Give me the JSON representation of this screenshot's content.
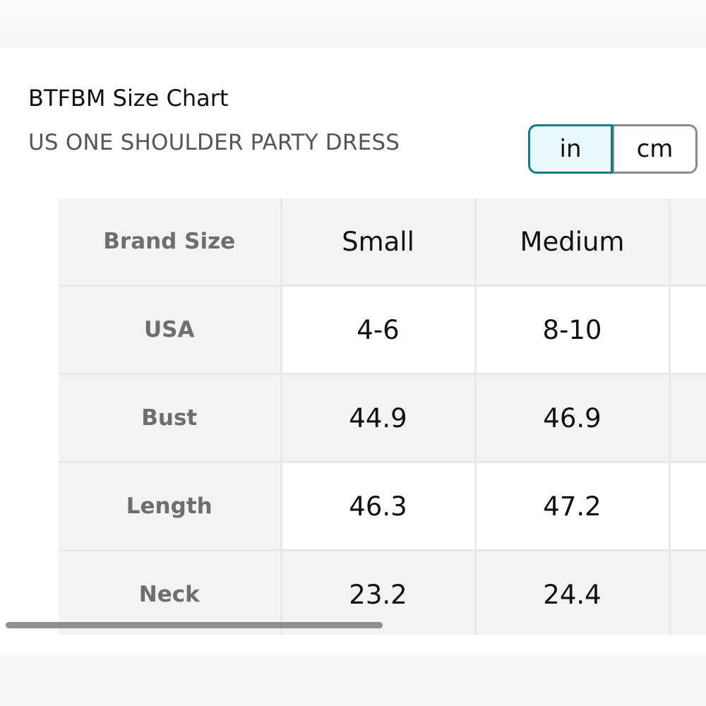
{
  "title": "BTFBM Size Chart",
  "subtitle": "US ONE SHOULDER PARTY DRESS",
  "unit_toggle": {
    "selected": "in",
    "in_label": "in",
    "cm_label": "cm",
    "accent_color": "#0e7a86"
  },
  "size_table": {
    "header": [
      "Brand Size",
      "Small",
      "Medium",
      ""
    ],
    "rows": [
      {
        "label": "USA",
        "values": [
          "4-6",
          "8-10",
          ""
        ]
      },
      {
        "label": "Bust",
        "values": [
          "44.9",
          "46.9",
          ""
        ]
      },
      {
        "label": "Length",
        "values": [
          "46.3",
          "47.2",
          ""
        ]
      },
      {
        "label": "Neck",
        "values": [
          "23.2",
          "24.4",
          ""
        ]
      }
    ]
  },
  "scrollbar": {
    "orientation": "horizontal"
  }
}
